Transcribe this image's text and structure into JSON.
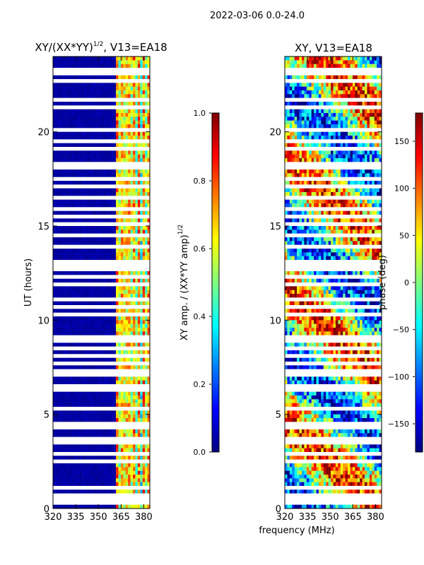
{
  "figure": {
    "suptitle": "2022-03-06 0.0-24.0",
    "xlabel_shared": "frequency (MHz)"
  },
  "colors": {
    "jet": [
      "#00007f",
      "#0000ff",
      "#007fff",
      "#00ffff",
      "#7fff7f",
      "#ffff00",
      "#ff7f00",
      "#ff0000",
      "#7f0000"
    ],
    "white": "#ffffff"
  },
  "chart_data": [
    {
      "type": "heatmap",
      "title": "XY/(XX*YY)",
      "title_superscript": "1/2",
      "title_suffix": ", V13=EA18",
      "xlabel": "",
      "ylabel": "UT (hours)",
      "xlim": [
        320,
        384
      ],
      "ylim": [
        0,
        24
      ],
      "x_ticks": [
        "320",
        "335",
        "350",
        "365",
        "380"
      ],
      "x_tick_values": [
        320,
        335,
        350,
        365,
        380
      ],
      "y_ticks": [
        "0",
        "5",
        "10",
        "15",
        "20"
      ],
      "y_tick_values": [
        0,
        5,
        10,
        15,
        20
      ],
      "quantity": "normalized cross-amplitude",
      "active_band_mhz": [
        361,
        382
      ],
      "colorbar": {
        "label": "XY amp. / (XX*YY amp)",
        "label_superscript": "1/2",
        "range": [
          0.0,
          1.0
        ],
        "ticks": [
          "0.0",
          "0.2",
          "0.4",
          "0.6",
          "0.8",
          "1.0"
        ],
        "tick_values": [
          0.0,
          0.2,
          0.4,
          0.6,
          0.8,
          1.0
        ]
      }
    },
    {
      "type": "heatmap",
      "title": "XY, V13=EA18",
      "xlabel": "frequency (MHz)",
      "ylabel": "",
      "xlim": [
        320,
        384
      ],
      "ylim": [
        0,
        24
      ],
      "x_ticks": [
        "320",
        "335",
        "350",
        "365",
        "380"
      ],
      "x_tick_values": [
        320,
        335,
        350,
        365,
        380
      ],
      "y_ticks": [
        "0",
        "5",
        "10",
        "15",
        "20"
      ],
      "y_tick_values": [
        0,
        5,
        10,
        15,
        20
      ],
      "quantity": "cross-phase",
      "colorbar": {
        "label": "phase (deg)",
        "range": [
          -180,
          180
        ],
        "ticks": [
          "−150",
          "−100",
          "−50",
          "0",
          "50",
          "100",
          "150"
        ],
        "tick_values": [
          -150,
          -100,
          -50,
          0,
          50,
          100,
          150
        ]
      }
    }
  ],
  "flagged_hours": [
    0.25,
    0.6,
    1.05,
    1.1,
    2.55,
    2.85,
    3.45,
    3.55,
    3.65,
    4.35,
    4.45,
    4.55,
    5.35,
    6.35,
    6.45,
    7.05,
    7.35,
    7.75,
    8.05,
    8.45,
    8.85,
    9.05,
    10.35,
    10.65,
    11.05,
    11.9,
    12.25,
    12.65,
    13.0,
    13.15,
    13.85,
    14.55,
    15.1,
    15.45,
    15.95,
    16.45,
    17.05,
    17.55,
    18.2,
    18.35,
    19.05,
    19.45,
    20.15,
    21.4,
    21.75,
    22.0,
    22.6,
    23.2,
    23.3
  ]
}
